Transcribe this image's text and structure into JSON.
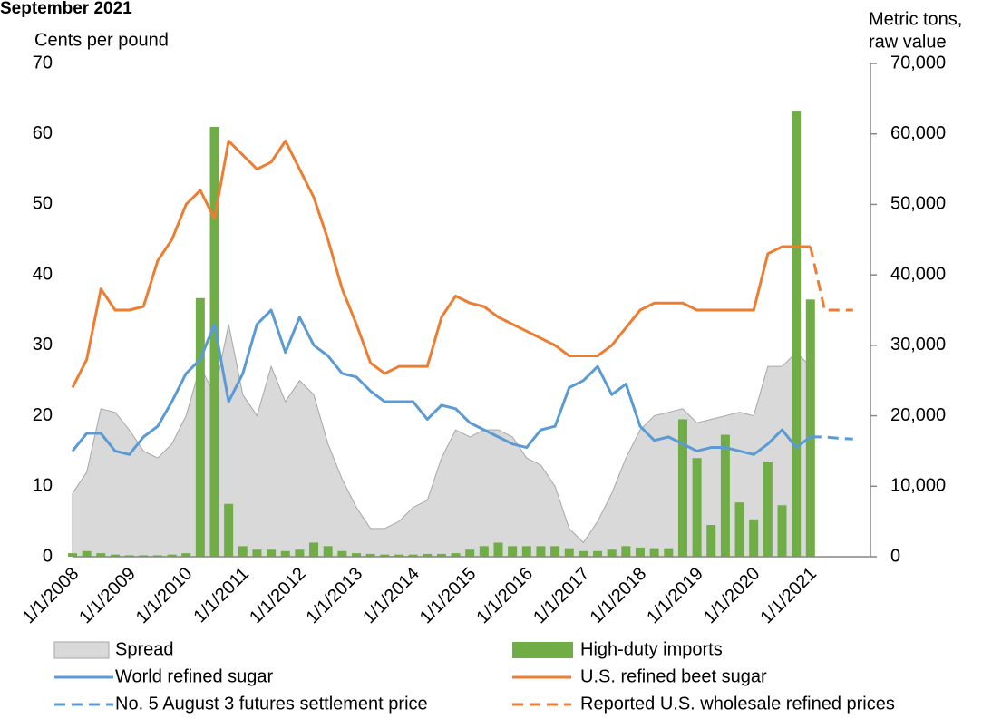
{
  "chart_data": {
    "type": "combo",
    "title": "September 2021",
    "y_label": "Cents per pound",
    "y2_label": [
      "Metric tons,",
      "raw value"
    ],
    "categories": [
      "1/1/2008",
      null,
      null,
      null,
      "1/1/2009",
      null,
      null,
      null,
      "1/1/2010",
      null,
      null,
      null,
      "1/1/2011",
      null,
      null,
      null,
      "1/1/2012",
      null,
      null,
      null,
      "1/1/2013",
      null,
      null,
      null,
      "1/1/2014",
      null,
      null,
      null,
      "1/1/2015",
      null,
      null,
      null,
      "1/1/2016",
      null,
      null,
      null,
      "1/1/2017",
      null,
      null,
      null,
      "1/1/2018",
      null,
      null,
      null,
      "1/1/2019",
      null,
      null,
      null,
      "1/1/2020",
      null,
      null,
      null,
      "1/1/2021",
      null,
      null,
      null
    ],
    "ylim": [
      0,
      70
    ],
    "yticks": [
      0,
      10,
      20,
      30,
      40,
      50,
      60,
      70
    ],
    "y2lim": [
      0,
      70000
    ],
    "y2ticks": [
      {
        "value": 0,
        "label": "0"
      },
      {
        "value": 10000,
        "label": "10,000"
      },
      {
        "value": 20000,
        "label": "20,000"
      },
      {
        "value": 30000,
        "label": "30,000"
      },
      {
        "value": 40000,
        "label": "40,000"
      },
      {
        "value": 50000,
        "label": "50,000"
      },
      {
        "value": 60000,
        "label": "60,000"
      },
      {
        "value": 70000,
        "label": "70,000"
      }
    ],
    "series": [
      {
        "name": "Spread",
        "style": "area",
        "color": "#d9d9d9",
        "values": [
          9,
          12,
          21,
          20.5,
          18,
          15,
          14,
          16,
          20,
          27,
          23,
          33,
          23,
          20,
          27,
          22,
          25,
          23,
          16,
          11,
          7,
          4,
          4,
          5,
          7,
          8,
          14,
          18,
          17,
          18,
          18,
          17,
          14,
          13,
          10,
          4,
          2,
          5,
          9,
          14,
          18,
          20,
          20.5,
          21,
          19,
          19.5,
          20,
          20.5,
          20,
          27,
          27,
          29,
          27,
          null,
          null,
          null
        ]
      },
      {
        "name": "High-duty imports",
        "style": "bar",
        "axis": "y2",
        "color": "#70ad47",
        "values": [
          500,
          800,
          500,
          300,
          200,
          200,
          200,
          300,
          500,
          36700,
          61000,
          7500,
          1500,
          1000,
          1000,
          800,
          1000,
          2000,
          1500,
          800,
          500,
          400,
          300,
          300,
          300,
          400,
          400,
          500,
          1000,
          1500,
          2000,
          1500,
          1500,
          1500,
          1500,
          1200,
          800,
          800,
          1000,
          1500,
          1300,
          1200,
          1200,
          19500,
          14000,
          4500,
          17300,
          7700,
          5300,
          13500,
          7300,
          63300,
          36500,
          null,
          null,
          null
        ]
      },
      {
        "name": "World refined sugar",
        "style": "line",
        "color": "#5b9bd5",
        "values": [
          15,
          17.5,
          17.5,
          15,
          14.5,
          17,
          18.5,
          22,
          26,
          28,
          33,
          22,
          26,
          33,
          35,
          29,
          34,
          30,
          28.5,
          26,
          25.5,
          23.5,
          22,
          22,
          22,
          19.5,
          21.5,
          21,
          19,
          18,
          17,
          16,
          15.5,
          18,
          18.5,
          24,
          25,
          27,
          23,
          24.5,
          18.5,
          16.5,
          17,
          16,
          15,
          15.5,
          15.5,
          15,
          14.5,
          16,
          18,
          15.5,
          17,
          null,
          null,
          null
        ]
      },
      {
        "name": "U.S. refined beet sugar",
        "style": "line",
        "color": "#ed7d31",
        "values": [
          24,
          28,
          38,
          35,
          35,
          35.5,
          42,
          45,
          50,
          52,
          48,
          59,
          57,
          55,
          56,
          59,
          55,
          51,
          45,
          38,
          33,
          27.5,
          26,
          27,
          27,
          27,
          34,
          37,
          36,
          35.5,
          34,
          33,
          32,
          31,
          30,
          28.5,
          28.5,
          28.5,
          30,
          32.5,
          35,
          36,
          36,
          36,
          35,
          35,
          35,
          35,
          35,
          43,
          44,
          44,
          44,
          null,
          null,
          null
        ]
      },
      {
        "name": "No. 5 August 3 futures settlement price",
        "style": "dashed",
        "color": "#5b9bd5",
        "values": [
          null,
          null,
          null,
          null,
          null,
          null,
          null,
          null,
          null,
          null,
          null,
          null,
          null,
          null,
          null,
          null,
          null,
          null,
          null,
          null,
          null,
          null,
          null,
          null,
          null,
          null,
          null,
          null,
          null,
          null,
          null,
          null,
          null,
          null,
          null,
          null,
          null,
          null,
          null,
          null,
          null,
          null,
          null,
          null,
          null,
          null,
          null,
          null,
          null,
          null,
          null,
          null,
          17,
          17,
          16.8,
          16.7
        ]
      },
      {
        "name": "Reported U.S. wholesale refined prices",
        "style": "dashed",
        "color": "#ed7d31",
        "values": [
          null,
          null,
          null,
          null,
          null,
          null,
          null,
          null,
          null,
          null,
          null,
          null,
          null,
          null,
          null,
          null,
          null,
          null,
          null,
          null,
          null,
          null,
          null,
          null,
          null,
          null,
          null,
          null,
          null,
          null,
          null,
          null,
          null,
          null,
          null,
          null,
          null,
          null,
          null,
          null,
          null,
          null,
          null,
          null,
          null,
          null,
          null,
          null,
          null,
          null,
          null,
          null,
          44,
          35,
          35,
          35
        ]
      }
    ]
  }
}
